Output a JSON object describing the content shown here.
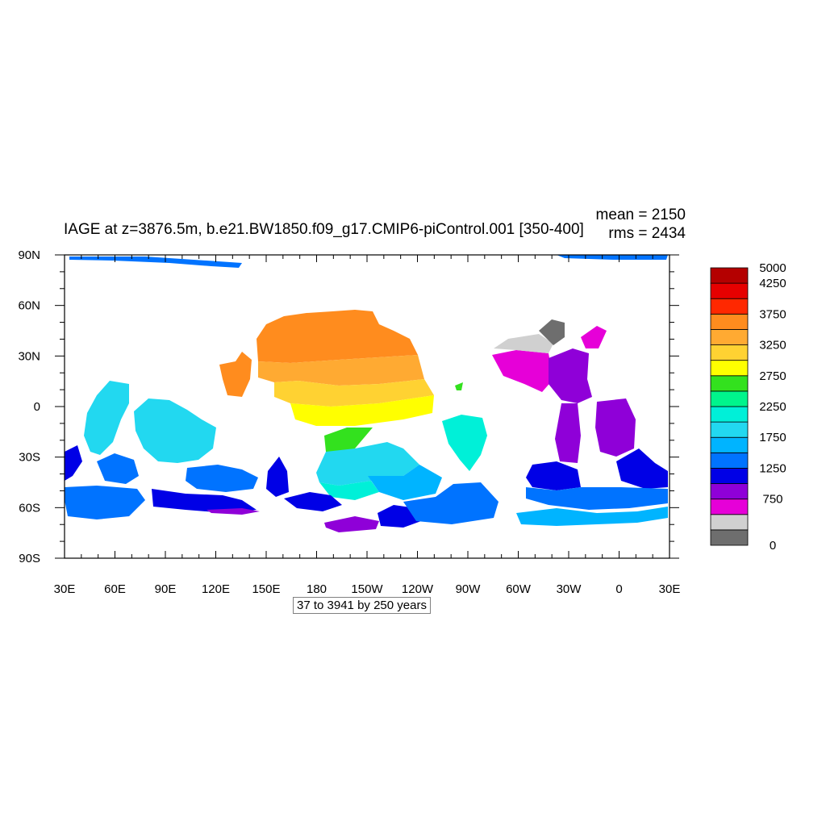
{
  "title": "IAGE at z=3876.5m, b.e21.BW1850.f09_g17.CMIP6-piControl.001 [350-400]",
  "stats": {
    "mean": "mean = 2150",
    "rms": "rms = 2434"
  },
  "x_ticks": [
    "30E",
    "60E",
    "90E",
    "120E",
    "150E",
    "180",
    "150W",
    "120W",
    "90W",
    "60W",
    "30W",
    "0",
    "30E"
  ],
  "y_ticks": [
    "90N",
    "60N",
    "30N",
    "0",
    "30S",
    "60S",
    "90S"
  ],
  "info": "37 to 3941 by 250 years",
  "colorbar": {
    "colors": [
      "#6e6e6e",
      "#d0d0d0",
      "#e600d8",
      "#8f00d8",
      "#0000e6",
      "#0073ff",
      "#00b4ff",
      "#22d8f0",
      "#00f0d8",
      "#00f58c",
      "#33e11e",
      "#ffff00",
      "#ffd232",
      "#ffaa32",
      "#ff8c1e",
      "#ff2800",
      "#e60000",
      "#b40000"
    ],
    "labels": [
      {
        "value": "0",
        "index": 0
      },
      {
        "value": "750",
        "index": 3
      },
      {
        "value": "1250",
        "index": 5
      },
      {
        "value": "1750",
        "index": 7
      },
      {
        "value": "2250",
        "index": 9
      },
      {
        "value": "2750",
        "index": 11
      },
      {
        "value": "3250",
        "index": 13
      },
      {
        "value": "3750",
        "index": 15
      },
      {
        "value": "4250",
        "index": 17
      },
      {
        "value": "5000",
        "index": 18
      }
    ]
  }
}
